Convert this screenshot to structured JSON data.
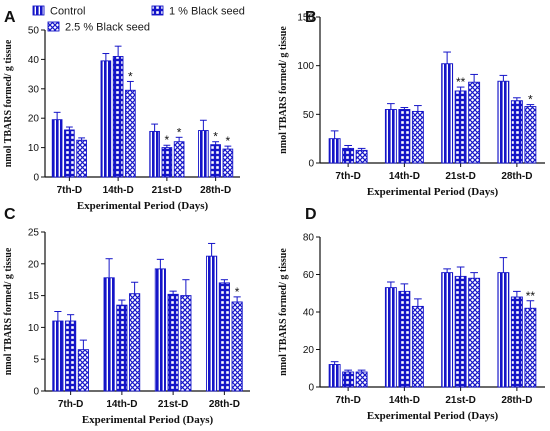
{
  "colors": {
    "bar": "#1515c8",
    "axis": "#111111",
    "background": "#ffffff"
  },
  "legend": {
    "items": [
      {
        "label": "Control",
        "pattern": "vertical-stripes"
      },
      {
        "label": "1 % Black seed",
        "pattern": "grid-squares"
      },
      {
        "label": "2.5 % Black seed",
        "pattern": "diamond-lattice"
      }
    ]
  },
  "chart_data": [
    {
      "panel": "A",
      "type": "bar",
      "categories": [
        "7th-D",
        "14th-D",
        "21st-D",
        "28th-D"
      ],
      "series": [
        {
          "name": "Control",
          "values": [
            19.5,
            39.5,
            15.5,
            15.8
          ],
          "errors": [
            2.5,
            2.5,
            2.5,
            3.5
          ],
          "stars": [
            "",
            "",
            "",
            ""
          ]
        },
        {
          "name": "1 % Black seed",
          "values": [
            16.0,
            41.0,
            10.0,
            11.0
          ],
          "errors": [
            1.0,
            3.5,
            0.8,
            1.0
          ],
          "stars": [
            "",
            "",
            "*",
            "*"
          ]
        },
        {
          "name": "2.5 % Black seed",
          "values": [
            12.5,
            29.5,
            12.0,
            9.5
          ],
          "errors": [
            0.8,
            3.0,
            1.5,
            1.0
          ],
          "stars": [
            "",
            "*",
            "*",
            "*"
          ]
        }
      ],
      "title": "",
      "xlabel": "Experimental Period (Days)",
      "ylabel": "nmol TBARS formed/ g tissue",
      "ylim": [
        0,
        50
      ],
      "yticks": [
        0,
        10,
        20,
        30,
        40,
        50
      ]
    },
    {
      "panel": "B",
      "type": "bar",
      "categories": [
        "7th-D",
        "14th-D",
        "21st-D",
        "28th-D"
      ],
      "series": [
        {
          "name": "Control",
          "values": [
            25,
            55,
            102,
            84
          ],
          "errors": [
            8,
            6,
            12,
            6
          ],
          "stars": [
            "",
            "",
            "",
            ""
          ]
        },
        {
          "name": "1 % Black seed",
          "values": [
            15,
            55,
            74,
            64
          ],
          "errors": [
            3,
            2,
            4,
            3
          ],
          "stars": [
            "",
            "",
            "**",
            ""
          ]
        },
        {
          "name": "2.5 % Black seed",
          "values": [
            13,
            53,
            83,
            58
          ],
          "errors": [
            2,
            6,
            8,
            2
          ],
          "stars": [
            "",
            "",
            "",
            "*"
          ]
        }
      ],
      "title": "",
      "xlabel": "Experimental Period (Days)",
      "ylabel": "nmol TBARS formed/ g tissue",
      "ylim": [
        0,
        150
      ],
      "yticks": [
        0,
        50,
        100,
        150
      ]
    },
    {
      "panel": "C",
      "type": "bar",
      "categories": [
        "7th-D",
        "14th-D",
        "21st-D",
        "28th-D"
      ],
      "series": [
        {
          "name": "Control",
          "values": [
            11.0,
            17.8,
            19.2,
            21.2
          ],
          "errors": [
            1.5,
            3.0,
            1.5,
            2.0
          ],
          "stars": [
            "",
            "",
            "",
            ""
          ]
        },
        {
          "name": "1 % Black seed",
          "values": [
            11.0,
            13.5,
            15.2,
            17.0
          ],
          "errors": [
            1.0,
            0.8,
            0.5,
            0.5
          ],
          "stars": [
            "",
            "",
            "",
            ""
          ]
        },
        {
          "name": "2.5 % Black seed",
          "values": [
            6.5,
            15.3,
            15.0,
            14.0
          ],
          "errors": [
            1.5,
            1.8,
            2.5,
            0.8
          ],
          "stars": [
            "",
            "",
            "",
            "*"
          ]
        }
      ],
      "title": "",
      "xlabel": "Experimental Period (Days)",
      "ylabel": "nmol TBARS formed/ g tissue",
      "ylim": [
        0,
        25
      ],
      "yticks": [
        0,
        5,
        10,
        15,
        20,
        25
      ]
    },
    {
      "panel": "D",
      "type": "bar",
      "categories": [
        "7th-D",
        "14th-D",
        "21st-D",
        "28th-D"
      ],
      "series": [
        {
          "name": "Control",
          "values": [
            12,
            53,
            61,
            61
          ],
          "errors": [
            1.5,
            3,
            2,
            8
          ],
          "stars": [
            "",
            "",
            "",
            ""
          ]
        },
        {
          "name": "1 % Black seed",
          "values": [
            8,
            51,
            59,
            48
          ],
          "errors": [
            1,
            4,
            5,
            3
          ],
          "stars": [
            "",
            "",
            "",
            ""
          ]
        },
        {
          "name": "2.5 % Black seed",
          "values": [
            8,
            43,
            58,
            42
          ],
          "errors": [
            1,
            4,
            3,
            4
          ],
          "stars": [
            "",
            "",
            "",
            "**"
          ]
        }
      ],
      "title": "",
      "xlabel": "Experimental Period (Days)",
      "ylabel": "nmol TBARS formed/ g tissue",
      "ylim": [
        0,
        80
      ],
      "yticks": [
        0,
        20,
        40,
        60,
        80
      ]
    }
  ]
}
